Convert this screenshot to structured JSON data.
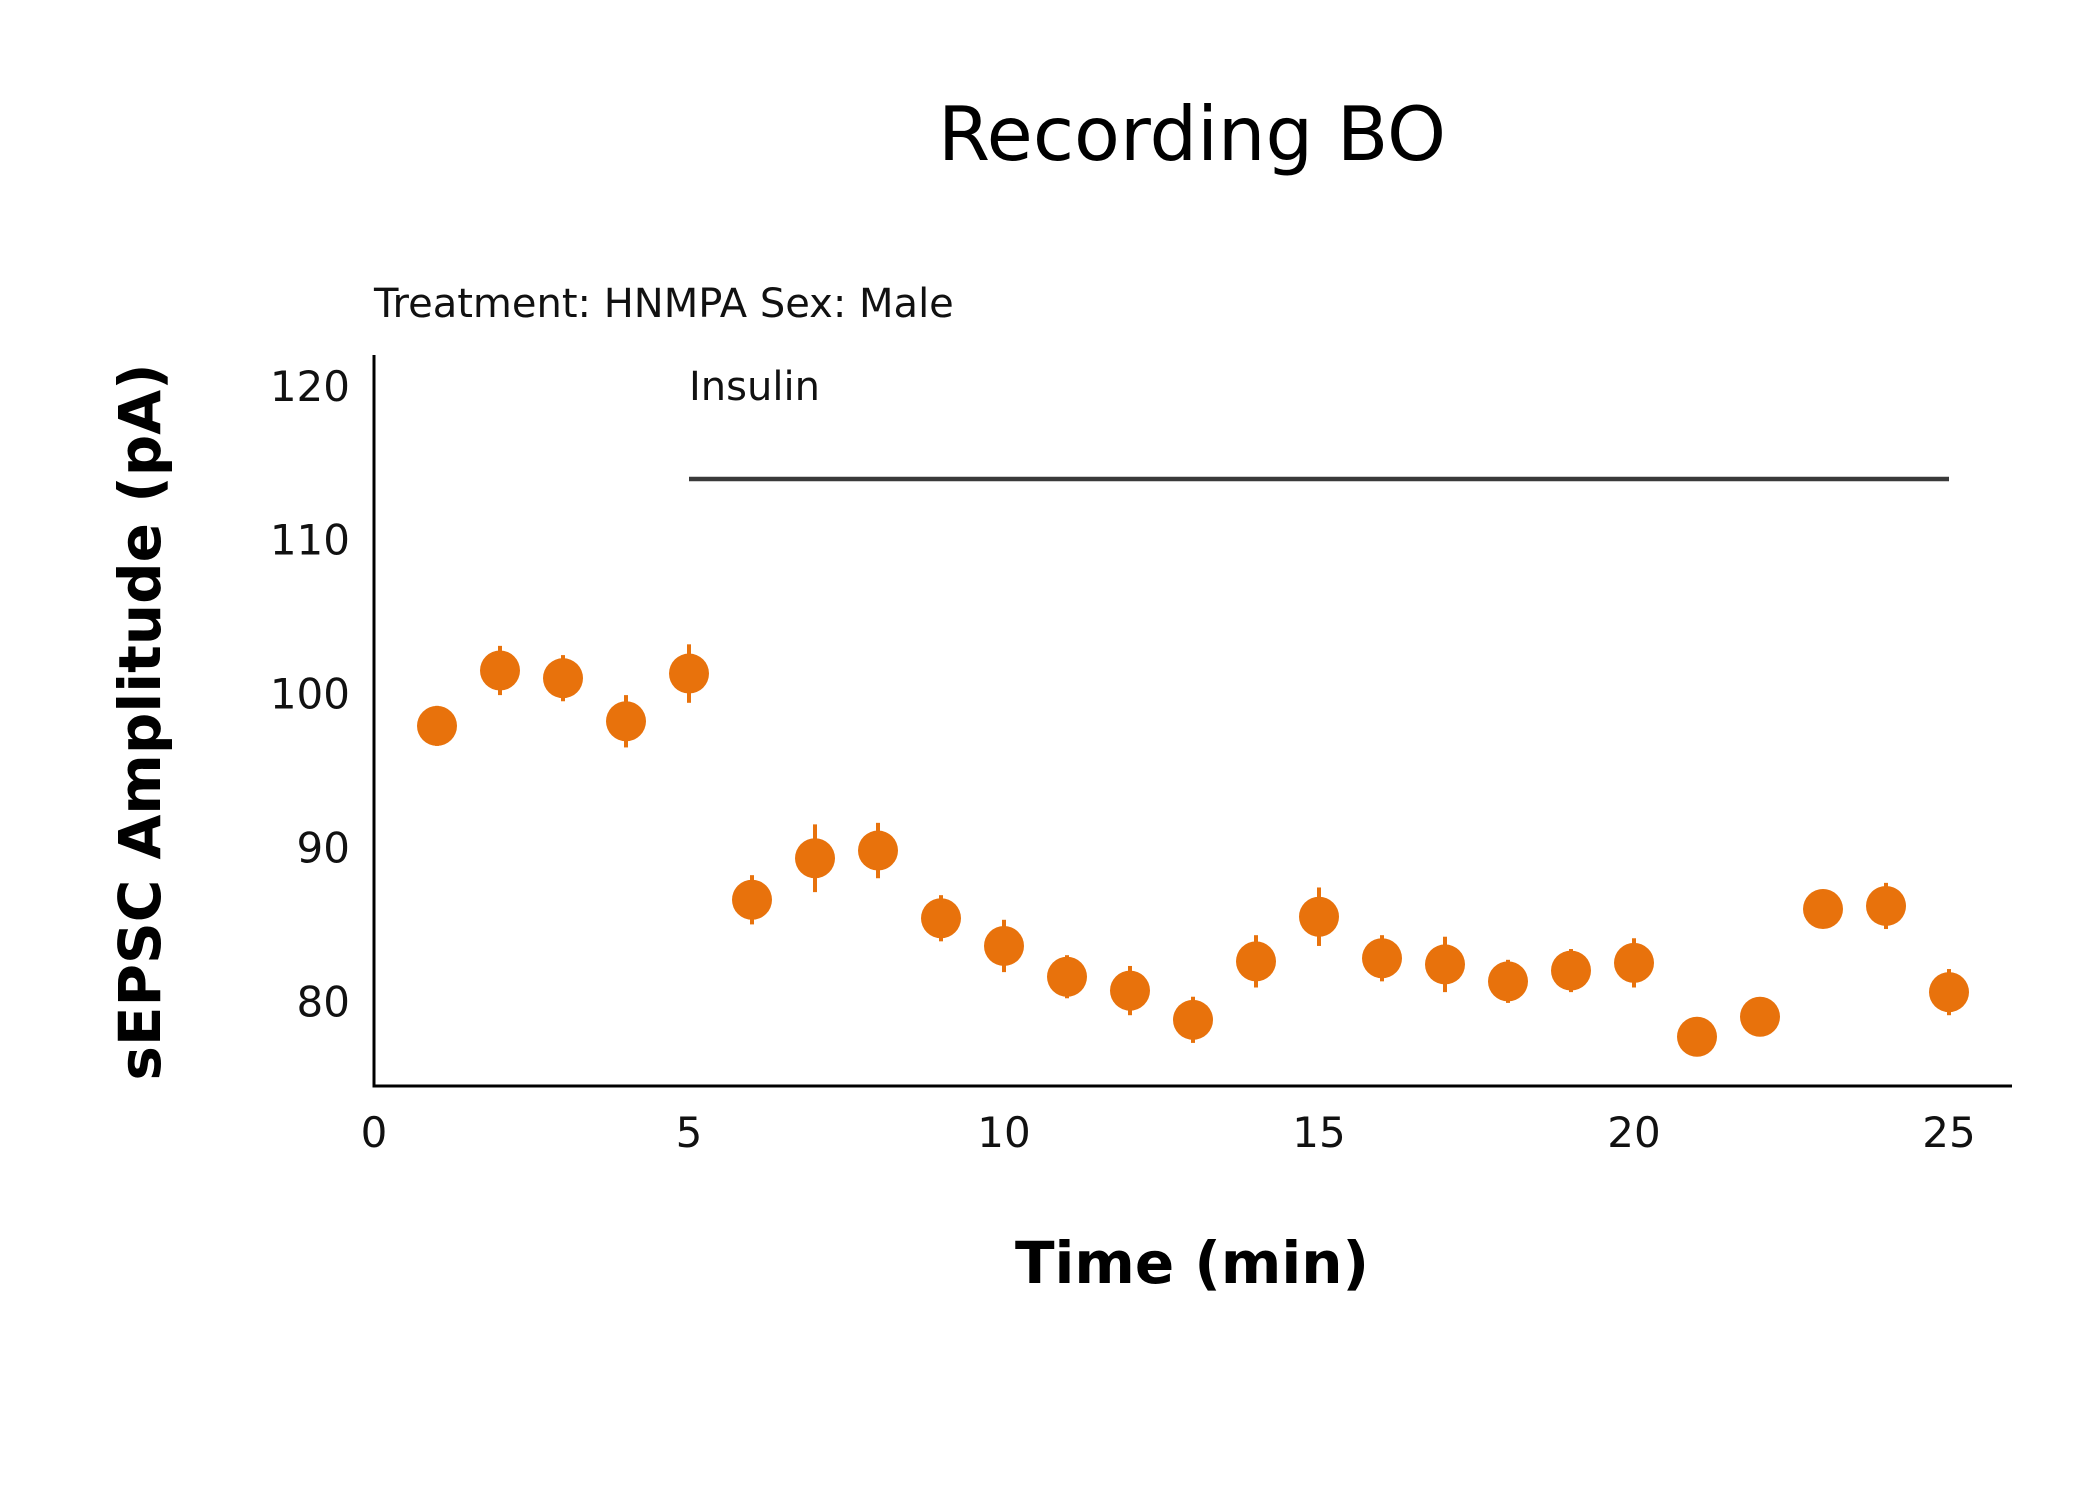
{
  "chart_data": {
    "type": "scatter",
    "title": "Recording BO",
    "subtitle": "Treatment: HNMPA  Sex: Male",
    "xlabel": "Time (min)",
    "ylabel": "sEPSC Amplitude (pA)",
    "xlim": [
      0,
      26
    ],
    "ylim": [
      74.5,
      122
    ],
    "xticks": [
      0,
      5,
      10,
      15,
      20,
      25
    ],
    "yticks": [
      80,
      90,
      100,
      110,
      120
    ],
    "grid": false,
    "point_color": "#e8720c",
    "annotation": {
      "label": "Insulin",
      "x_start": 5,
      "x_end": 25
    },
    "series": [
      {
        "x": [
          1,
          2,
          3,
          4,
          5,
          6,
          7,
          8,
          9,
          10,
          11,
          12,
          13,
          14,
          15,
          16,
          17,
          18,
          19,
          20,
          21,
          22,
          23,
          24,
          25
        ],
        "y": [
          97.9,
          101.5,
          101.0,
          98.2,
          101.3,
          86.6,
          89.3,
          89.8,
          85.4,
          83.6,
          81.6,
          80.7,
          78.8,
          82.6,
          85.5,
          82.8,
          82.4,
          81.3,
          82.0,
          82.5,
          77.7,
          79.0,
          86.0,
          86.2,
          80.6
        ],
        "err": [
          1.3,
          1.6,
          1.5,
          1.7,
          1.9,
          1.6,
          2.2,
          1.8,
          1.5,
          1.7,
          1.4,
          1.6,
          1.5,
          1.7,
          1.9,
          1.5,
          1.8,
          1.4,
          1.4,
          1.6,
          0.9,
          1.1,
          1.1,
          1.5,
          1.5
        ]
      }
    ]
  }
}
